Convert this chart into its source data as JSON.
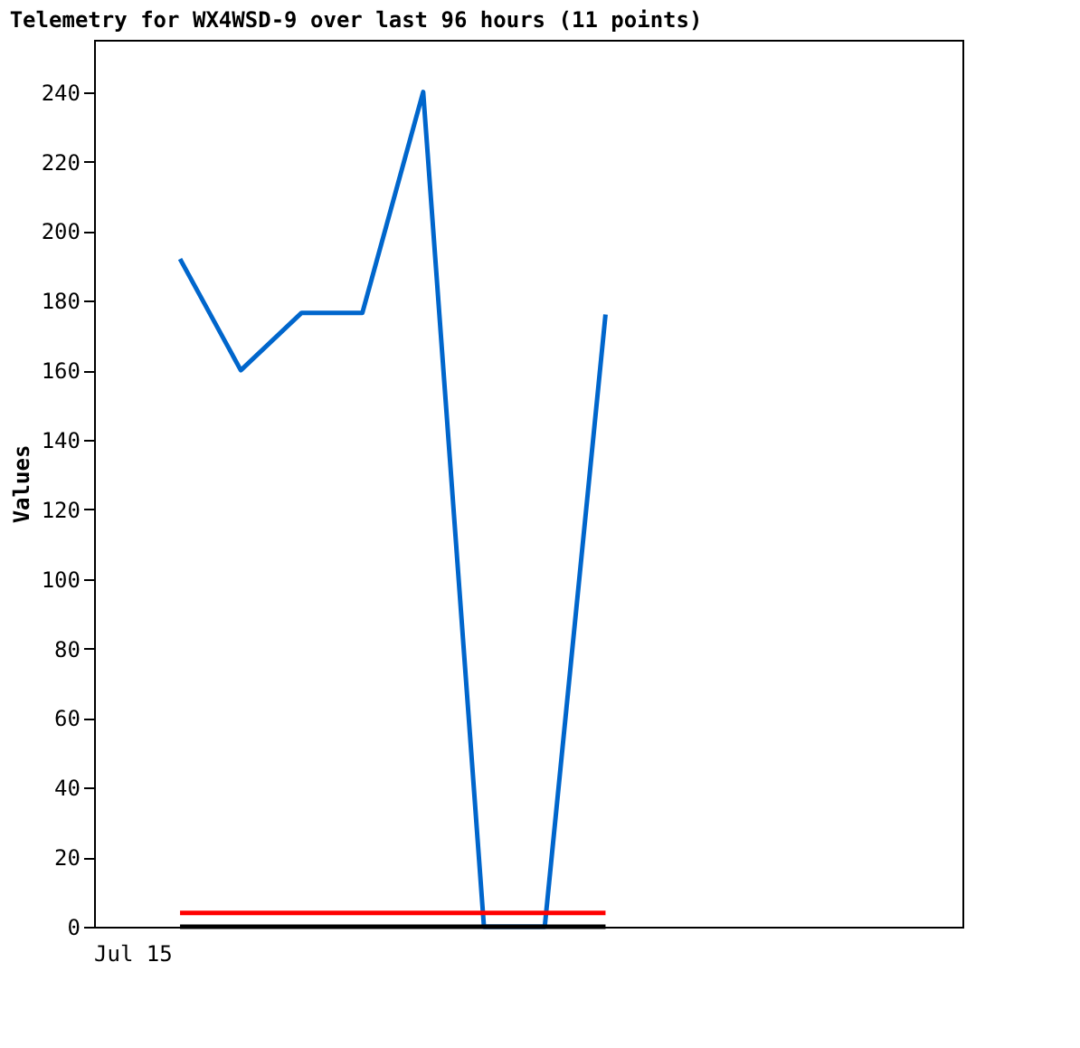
{
  "chart_data": {
    "type": "line",
    "title": "Telemetry for WX4WSD-9 over last 96 hours (11 points)",
    "ylabel": "Values",
    "categories": [
      null,
      null,
      null,
      null,
      null,
      null,
      null,
      null
    ],
    "annotations": [
      "Jul 15"
    ],
    "ylim": [
      0,
      255
    ],
    "yticks": [
      0,
      20,
      40,
      60,
      80,
      100,
      120,
      140,
      160,
      180,
      200,
      220,
      240
    ],
    "grid": false,
    "marker": "none",
    "line_style": "solid",
    "series": [
      {
        "color": "#0066cc",
        "values": [
          192,
          160,
          176.5,
          176.5,
          240,
          0,
          0,
          176
        ]
      },
      {
        "color": "#ff0000",
        "values": [
          4,
          4,
          4,
          4,
          4,
          4,
          4,
          4
        ]
      },
      {
        "color": "#000000",
        "values": [
          0,
          0,
          0,
          0,
          0,
          0,
          0,
          0
        ]
      }
    ]
  }
}
